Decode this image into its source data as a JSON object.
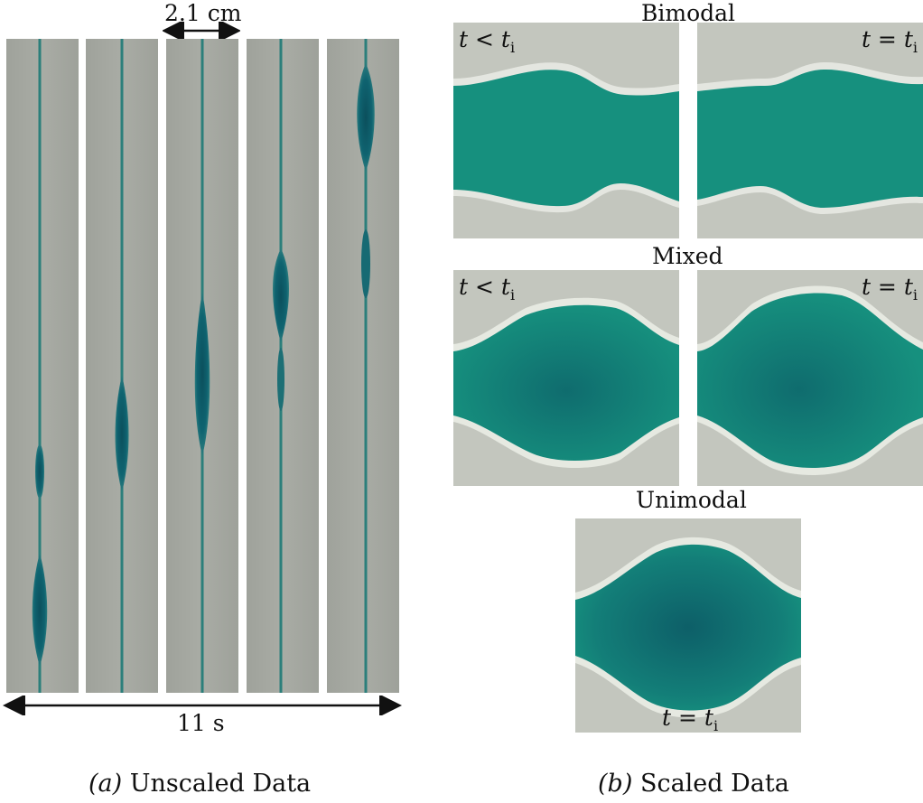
{
  "panel_a": {
    "scale_bar_label": "2.1 cm",
    "time_label": "11 s",
    "caption_letter": "(a)",
    "caption_text": "Unscaled Data"
  },
  "panel_b": {
    "bimodal": {
      "title": "Bimodal",
      "left_label": "t < t",
      "right_label": "t = t"
    },
    "mixed": {
      "title": "Mixed",
      "left_label": "t < t",
      "right_label": "t = t"
    },
    "unimodal": {
      "title": "Unimodal",
      "bottom_label": "t = t"
    },
    "subscript": "i",
    "caption_letter": "(b)",
    "caption_text": "Scaled Data"
  },
  "colors": {
    "background_gray": "#a4a7a0",
    "photo_gray": "#c4c6bf",
    "dye_teal": "#12907e",
    "dye_dark": "#0e5c66",
    "halo": "#eef0ea"
  }
}
